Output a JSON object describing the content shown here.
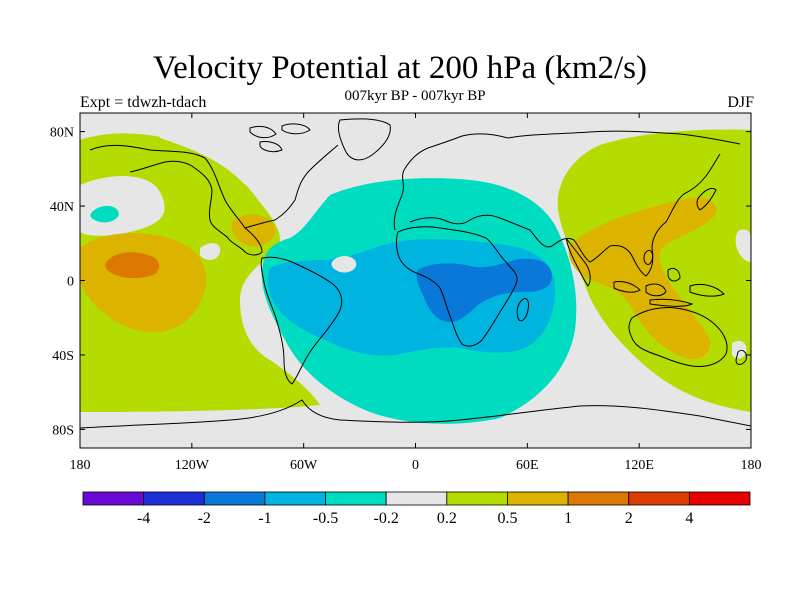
{
  "header": {
    "title": "Velocity Potential at 200 hPa (km2/s)",
    "subtitle": "007kyr BP - 007kyr BP",
    "left_label": "Expt = tdwzh-tdach",
    "right_label": "DJF"
  },
  "map": {
    "background_color": "#e6e6e6",
    "coastline_color": "#000000",
    "lon_range": [
      -180,
      180
    ],
    "lat_range": [
      -90,
      90
    ],
    "lat_ticks": [
      {
        "value": 80,
        "label": "80N"
      },
      {
        "value": 40,
        "label": "40N"
      },
      {
        "value": 0,
        "label": "0"
      },
      {
        "value": -40,
        "label": "40S"
      },
      {
        "value": -80,
        "label": "80S"
      }
    ],
    "lon_ticks": [
      {
        "value": -180,
        "label": "180"
      },
      {
        "value": -120,
        "label": "120W"
      },
      {
        "value": -60,
        "label": "60W"
      },
      {
        "value": 0,
        "label": "0"
      },
      {
        "value": 60,
        "label": "60E"
      },
      {
        "value": 120,
        "label": "120E"
      },
      {
        "value": 180,
        "label": "180"
      }
    ]
  },
  "colorbar": {
    "colors": [
      "#6a0ad6",
      "#1c2ed8",
      "#0a78d8",
      "#00b4e0",
      "#00dcc0",
      "#e6e6e6",
      "#b4dc00",
      "#dcb400",
      "#dc7800",
      "#dc3c00",
      "#e60000"
    ],
    "labels": [
      "-4",
      "-2",
      "-1",
      "-0.5",
      "-0.2",
      "0.2",
      "0.5",
      "1",
      "2",
      "4"
    ]
  }
}
